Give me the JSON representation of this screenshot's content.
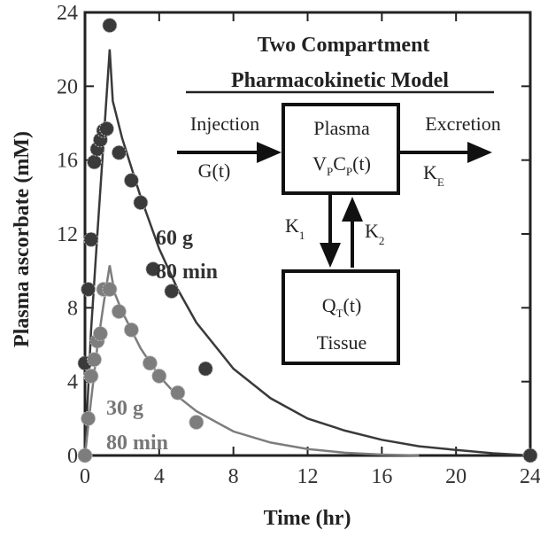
{
  "chart_data": {
    "type": "scatter",
    "title": "Two Compartment",
    "subtitle": "Pharmacokinetic Model",
    "xlabel": "Time (hr)",
    "ylabel": "Plasma ascorbate (mM)",
    "xlim": [
      0,
      24
    ],
    "ylim": [
      0,
      24
    ],
    "x_ticks": [
      "0",
      "4",
      "8",
      "12",
      "16",
      "20",
      "24"
    ],
    "y_ticks": [
      "0",
      "4",
      "8",
      "12",
      "16",
      "20",
      "24"
    ],
    "grid": false,
    "series": [
      {
        "label_line1": "60 g",
        "label_line2": "80 min",
        "color": "#3a3a3a",
        "points": [
          [
            0.0,
            5.0
          ],
          [
            0.17,
            9.0
          ],
          [
            0.33,
            11.7
          ],
          [
            0.5,
            15.9
          ],
          [
            0.67,
            16.6
          ],
          [
            0.83,
            17.1
          ],
          [
            1.0,
            17.6
          ],
          [
            1.17,
            17.7
          ],
          [
            1.33,
            23.3
          ],
          [
            1.83,
            16.4
          ],
          [
            2.5,
            14.9
          ],
          [
            3.0,
            13.7
          ],
          [
            3.67,
            10.1
          ],
          [
            4.67,
            8.9
          ],
          [
            6.5,
            4.7
          ],
          [
            24.0,
            0.0
          ]
        ],
        "fit": [
          [
            0,
            0
          ],
          [
            0.33,
            6.8
          ],
          [
            0.67,
            12.0
          ],
          [
            1.0,
            17.0
          ],
          [
            1.33,
            22.0
          ],
          [
            1.5,
            19.2
          ],
          [
            2.0,
            17.2
          ],
          [
            3.0,
            14.0
          ],
          [
            4.0,
            11.2
          ],
          [
            5.0,
            9.0
          ],
          [
            6.0,
            7.2
          ],
          [
            8.0,
            4.7
          ],
          [
            10.0,
            3.1
          ],
          [
            12.0,
            2.0
          ],
          [
            14.0,
            1.35
          ],
          [
            16.0,
            0.85
          ],
          [
            18.0,
            0.5
          ],
          [
            20.0,
            0.3
          ],
          [
            22.0,
            0.12
          ],
          [
            24.0,
            0.0
          ]
        ]
      },
      {
        "label_line1": "30 g",
        "label_line2": "80 min",
        "color": "#7d7d7d",
        "points": [
          [
            0.0,
            0.0
          ],
          [
            0.17,
            2.0
          ],
          [
            0.33,
            4.3
          ],
          [
            0.5,
            5.2
          ],
          [
            0.67,
            6.2
          ],
          [
            0.83,
            6.6
          ],
          [
            1.0,
            9.0
          ],
          [
            1.33,
            9.0
          ],
          [
            1.83,
            7.8
          ],
          [
            2.5,
            6.8
          ],
          [
            3.5,
            5.0
          ],
          [
            4.0,
            4.3
          ],
          [
            5.0,
            3.4
          ],
          [
            6.0,
            1.8
          ]
        ],
        "fit": [
          [
            0,
            0
          ],
          [
            0.33,
            3.0
          ],
          [
            0.67,
            5.9
          ],
          [
            1.0,
            8.2
          ],
          [
            1.33,
            10.3
          ],
          [
            1.6,
            8.8
          ],
          [
            2.0,
            7.8
          ],
          [
            3.0,
            5.8
          ],
          [
            4.0,
            4.3
          ],
          [
            5.0,
            3.2
          ],
          [
            6.0,
            2.4
          ],
          [
            8.0,
            1.3
          ],
          [
            10.0,
            0.7
          ],
          [
            12.0,
            0.35
          ],
          [
            14.0,
            0.15
          ],
          [
            16.0,
            0.05
          ],
          [
            18.0,
            0.0
          ]
        ]
      }
    ]
  },
  "diagram": {
    "injection_label": "Injection",
    "injection_func": "G(t)",
    "plasma_label": "Plasma",
    "plasma_formula_main": "V",
    "plasma_formula_sub1": "P",
    "plasma_formula_mid": "C",
    "plasma_formula_sub2": "P",
    "plasma_formula_end": "(t)",
    "excretion_label": "Excretion",
    "excretion_k": "K",
    "excretion_k_sub": "E",
    "k1": "K",
    "k1_sub": "1",
    "k2": "K",
    "k2_sub": "2",
    "tissue_formula_main": "Q",
    "tissue_formula_sub": "T",
    "tissue_formula_end": "(t)",
    "tissue_label": "Tissue"
  }
}
